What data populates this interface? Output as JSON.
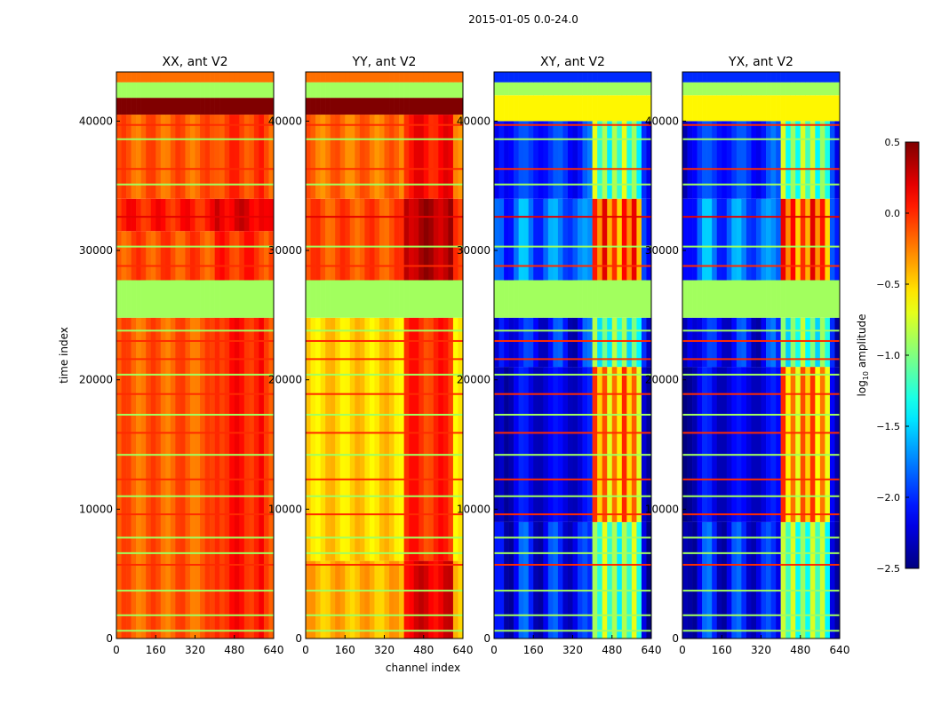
{
  "chart_data": {
    "type": "heatmap",
    "title": "2015-01-05 0.0-24.0",
    "xlabel": "channel index",
    "ylabel": "time index",
    "xlim": [
      0,
      640
    ],
    "ylim": [
      0,
      43800
    ],
    "xticks": [
      "0",
      "160",
      "320",
      "480",
      "640"
    ],
    "yticks": [
      "0",
      "10000",
      "20000",
      "30000",
      "40000"
    ],
    "colorbar": {
      "label_main": "log",
      "label_sub": "10",
      "label_rest": " amplitude",
      "range": [
        -2.5,
        0.5
      ],
      "ticks": [
        "0.5",
        "0.0",
        "−0.5",
        "−1.0",
        "−1.5",
        "−2.0",
        "−2.5"
      ],
      "tick_values": [
        0.5,
        0.0,
        -0.5,
        -1.0,
        -1.5,
        -2.0,
        -2.5
      ],
      "colormap": "jet"
    },
    "panels": [
      {
        "title": "XX, ant V2",
        "bands": [
          [
            0,
            24800,
            -0.15,
            0.05
          ],
          [
            24800,
            27700,
            -0.9,
            -0.9
          ],
          [
            27700,
            31500,
            -0.1,
            0.0
          ],
          [
            31500,
            34000,
            0.05,
            0.2
          ],
          [
            34000,
            40500,
            -0.15,
            -0.05
          ],
          [
            40500,
            41800,
            0.5,
            0.5
          ],
          [
            41800,
            43000,
            -0.9,
            -0.9
          ],
          [
            43000,
            43800,
            -0.2,
            -0.2
          ]
        ]
      },
      {
        "title": "YY, ant V2",
        "bands": [
          [
            0,
            6000,
            -0.4,
            0.2
          ],
          [
            6000,
            24800,
            -0.5,
            0.0
          ],
          [
            24800,
            27700,
            -0.9,
            -0.9
          ],
          [
            27700,
            34000,
            -0.1,
            0.35
          ],
          [
            34000,
            40500,
            -0.2,
            0.1
          ],
          [
            40500,
            41800,
            0.5,
            0.5
          ],
          [
            41800,
            43000,
            -0.9,
            -0.9
          ],
          [
            43000,
            43800,
            -0.2,
            -0.2
          ]
        ]
      },
      {
        "title": "XY, ant V2",
        "bands": [
          [
            0,
            9000,
            -2.1,
            -0.8
          ],
          [
            9000,
            21000,
            -2.2,
            -0.1
          ],
          [
            21000,
            24800,
            -2.1,
            -0.9
          ],
          [
            24800,
            27700,
            -0.9,
            -0.9
          ],
          [
            27700,
            34000,
            -1.8,
            0.1
          ],
          [
            34000,
            40000,
            -2.0,
            -0.8
          ],
          [
            40000,
            42000,
            -0.6,
            -0.6
          ],
          [
            42000,
            43000,
            -0.9,
            -0.9
          ],
          [
            43000,
            43800,
            -2.0,
            -2.0
          ]
        ]
      },
      {
        "title": "YX, ant V2",
        "bands": [
          [
            0,
            9000,
            -2.1,
            -0.8
          ],
          [
            9000,
            21000,
            -2.2,
            -0.1
          ],
          [
            21000,
            24800,
            -2.1,
            -0.9
          ],
          [
            24800,
            27700,
            -0.9,
            -0.9
          ],
          [
            27700,
            34000,
            -1.8,
            0.1
          ],
          [
            34000,
            40000,
            -2.0,
            -0.8
          ],
          [
            40000,
            42000,
            -0.6,
            -0.6
          ],
          [
            42000,
            43000,
            -0.9,
            -0.9
          ],
          [
            43000,
            43800,
            -2.0,
            -2.0
          ]
        ]
      }
    ],
    "stripes": [
      {
        "t": 600,
        "v": -0.9
      },
      {
        "t": 1800,
        "v": -0.9
      },
      {
        "t": 3700,
        "v": -0.9
      },
      {
        "t": 5700,
        "v": 0.0
      },
      {
        "t": 6600,
        "v": -0.9
      },
      {
        "t": 7800,
        "v": -0.9
      },
      {
        "t": 9600,
        "v": 0.0
      },
      {
        "t": 11000,
        "v": -0.9
      },
      {
        "t": 12300,
        "v": 0.0
      },
      {
        "t": 14200,
        "v": -0.9
      },
      {
        "t": 15900,
        "v": 0.0
      },
      {
        "t": 17300,
        "v": -0.9
      },
      {
        "t": 18900,
        "v": 0.0
      },
      {
        "t": 20400,
        "v": -0.9
      },
      {
        "t": 21600,
        "v": 0.0
      },
      {
        "t": 23000,
        "v": 0.0
      },
      {
        "t": 23800,
        "v": -0.9
      },
      {
        "t": 28800,
        "v": 0.0
      },
      {
        "t": 30300,
        "v": -0.9
      },
      {
        "t": 32600,
        "v": 0.2
      },
      {
        "t": 35100,
        "v": -0.9
      },
      {
        "t": 36300,
        "v": 0.0
      },
      {
        "t": 38600,
        "v": -0.9
      },
      {
        "t": 39700,
        "v": 0.0
      }
    ]
  }
}
